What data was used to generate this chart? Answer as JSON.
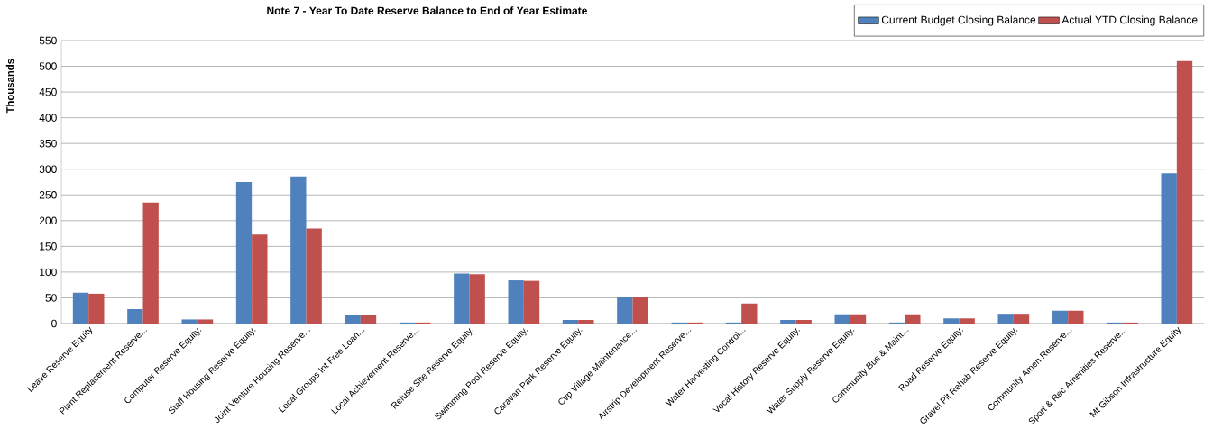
{
  "chart_data": {
    "type": "bar",
    "title": "Note 7 - Year To Date Reserve Balance to End of Year Estimate",
    "ylabel": "Thousands",
    "categories": [
      "Leave Reserve Equity",
      "Plant Replacement  Reserve...",
      "Computer Reserve Equity.",
      "Staff Housing Reserve Equity.",
      "Joint Venture Housing Reserve...",
      "Local Groups Int Free Loan...",
      "Local Achievement Reserve...",
      "Refuse Site Reserve Equity.",
      "Swimming Pool Reserve Equity.",
      "Caravan Park Reserve Equity.",
      "Cvp Village Maintenance...",
      "Airstrip Development Reserve...",
      "Water Harvesting Control...",
      "Vocal History Reserve Equity.",
      "Water Supply Reserve Equity.",
      "Community Bus & Maint...",
      "Road Reserve Equity.",
      "Gravel Pit Rehab Reserve Equity.",
      "Community Amen Reserve...",
      "Sport & Rec Amenities Reserve...",
      "Mt Gibson Infrastructure Equity"
    ],
    "series": [
      {
        "name": "Current Budget Closing Balance",
        "color": "#4f81bd",
        "values": [
          60,
          28,
          8,
          275,
          286,
          16,
          2,
          97,
          84,
          7,
          51,
          2,
          2,
          7,
          18,
          2,
          10,
          19,
          25,
          2,
          292
        ]
      },
      {
        "name": "Actual YTD Closing Balance",
        "color": "#c0504d",
        "values": [
          58,
          235,
          8,
          173,
          185,
          16,
          2,
          96,
          83,
          7,
          51,
          2,
          39,
          7,
          18,
          18,
          10,
          19,
          25,
          2,
          510
        ]
      }
    ],
    "ylim": [
      0,
      550
    ],
    "yticks": [
      0,
      50,
      100,
      150,
      200,
      250,
      300,
      350,
      400,
      450,
      500,
      550
    ],
    "grid": "y",
    "legend": "top right"
  }
}
